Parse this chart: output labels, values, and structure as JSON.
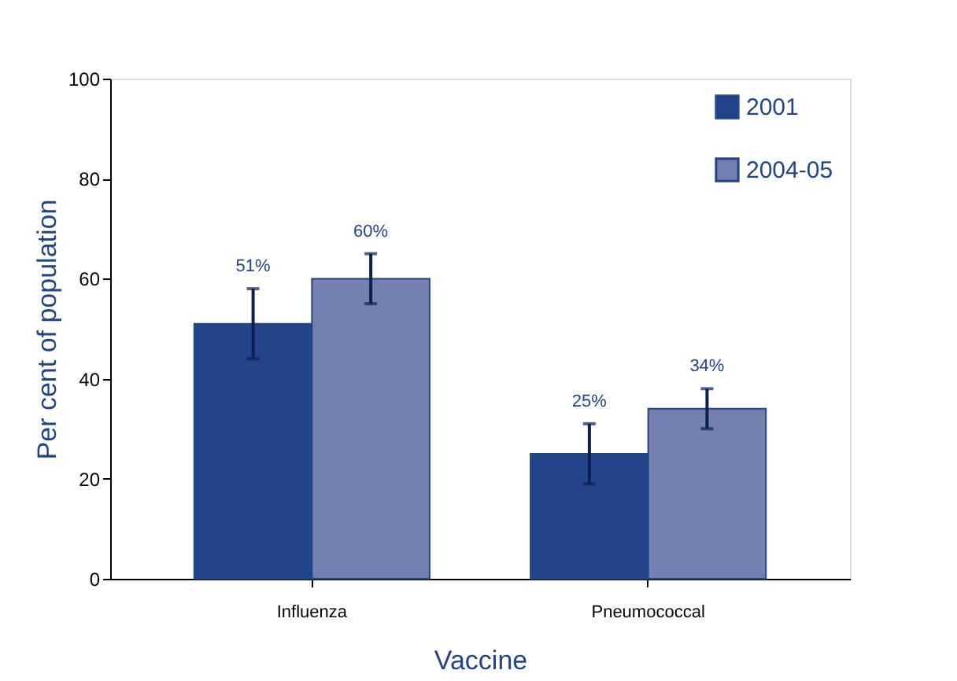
{
  "chart_data": {
    "type": "bar",
    "xlabel": "Vaccine",
    "ylabel": "Per cent of population",
    "categories": [
      "Influenza",
      "Pneumococcal"
    ],
    "series": [
      {
        "name": "2001",
        "color": "#224488",
        "values": [
          51,
          25
        ],
        "errors": [
          [
            44,
            58
          ],
          [
            19,
            31
          ]
        ],
        "value_labels": [
          "51%",
          "25%"
        ]
      },
      {
        "name": "2004-05",
        "color": "#7580b0",
        "values": [
          60,
          34
        ],
        "errors": [
          [
            55,
            65
          ],
          [
            30,
            38
          ]
        ],
        "value_labels": [
          "60%",
          "34%"
        ]
      }
    ],
    "ylim": [
      0,
      100
    ],
    "yticks": [
      0,
      20,
      40,
      60,
      80,
      100
    ],
    "grid": false,
    "legend": "top right"
  }
}
